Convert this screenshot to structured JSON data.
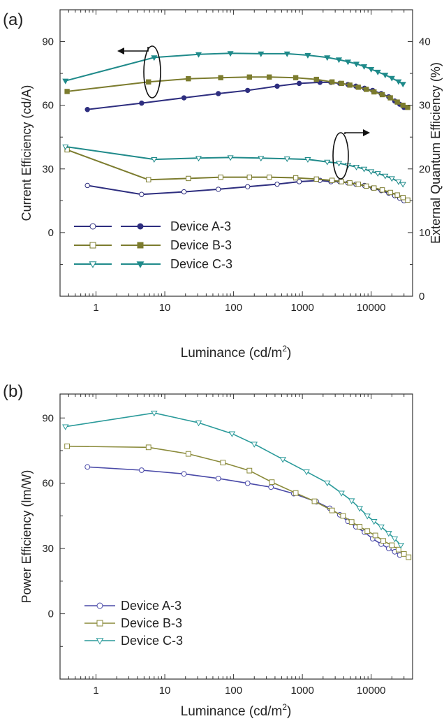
{
  "chart_data": [
    {
      "panel_label": "(a)",
      "type": "line",
      "x_scale": "log",
      "xlabel": "Luminance (cd/m",
      "xlabel_sup": "2",
      "xlabel_close": ")",
      "xlim": [
        0.3,
        40000
      ],
      "xticks": [
        1,
        10,
        100,
        1000,
        10000
      ],
      "xtick_labels": [
        "1",
        "10",
        "100",
        "1000",
        "10000"
      ],
      "ylabel_left": "Current Efficiency (cd/A)",
      "ylim_left": [
        -30,
        105
      ],
      "yticks_left": [
        0,
        30,
        60,
        90
      ],
      "ylabel_right": "External Quantum Efficiency (%)",
      "ylim_right": [
        0,
        45
      ],
      "yticks_right": [
        0,
        10,
        20,
        30,
        40
      ],
      "legend_position": "lower-left",
      "legend": [
        "Device A-3",
        "Device B-3",
        "Device C-3"
      ],
      "series": [
        {
          "name": "Device A-3",
          "color": "#2e2e7f",
          "metric": "current-efficiency",
          "axis": "left",
          "marker": "circle",
          "filled": true,
          "x": [
            0.75,
            4.6,
            19,
            60,
            160,
            430,
            900,
            1800,
            2600,
            3500,
            4600,
            6000,
            8000,
            10500,
            14000,
            18000,
            22000,
            26000,
            30000
          ],
          "y": [
            58,
            61,
            63.5,
            65.5,
            67,
            69,
            70.3,
            70.8,
            70.8,
            70.3,
            69.8,
            69,
            68,
            67,
            65.5,
            64,
            62,
            60.5,
            59
          ]
        },
        {
          "name": "Device A-3",
          "color": "#2e2e7f",
          "metric": "external-quantum-efficiency",
          "axis": "right",
          "marker": "circle",
          "filled": false,
          "x": [
            0.75,
            4.6,
            19,
            60,
            160,
            430,
            900,
            1800,
            2600,
            3500,
            4600,
            6000,
            8000,
            10500,
            14000,
            18000,
            22000,
            26000,
            30000
          ],
          "y": [
            17.4,
            16.0,
            16.4,
            16.8,
            17.2,
            17.6,
            18.0,
            18.2,
            18.0,
            18.0,
            17.8,
            17.6,
            17.4,
            17.0,
            16.6,
            16.2,
            15.8,
            15.4,
            15.0
          ]
        },
        {
          "name": "Device B-3",
          "color": "#7c7c2e",
          "metric": "current-efficiency",
          "axis": "left",
          "marker": "square",
          "filled": true,
          "x": [
            0.38,
            5.8,
            22,
            65,
            170,
            330,
            800,
            1600,
            2700,
            3700,
            4900,
            6500,
            8500,
            11000,
            14500,
            19000,
            24000,
            29000,
            34000
          ],
          "y": [
            66.5,
            71,
            72.5,
            73,
            73.3,
            73.3,
            73,
            72.2,
            71,
            70.3,
            69.5,
            68.5,
            67.5,
            66.3,
            65,
            63.5,
            61.5,
            60,
            59
          ]
        },
        {
          "name": "Device B-3",
          "color": "#7c7c2e",
          "metric": "external-quantum-efficiency",
          "axis": "right",
          "marker": "square",
          "filled": false,
          "x": [
            0.38,
            5.8,
            22,
            65,
            170,
            330,
            800,
            1600,
            2700,
            3700,
            4900,
            6500,
            8500,
            11000,
            14500,
            19000,
            24000,
            29000,
            34000
          ],
          "y": [
            23.0,
            18.3,
            18.5,
            18.7,
            18.7,
            18.7,
            18.6,
            18.4,
            18.2,
            18.0,
            17.8,
            17.6,
            17.3,
            17.0,
            16.7,
            16.3,
            15.9,
            15.5,
            15.1
          ]
        },
        {
          "name": "Device C-3",
          "color": "#1f8a8a",
          "metric": "current-efficiency",
          "axis": "left",
          "marker": "triangle-down",
          "filled": true,
          "x": [
            0.36,
            7,
            31,
            90,
            250,
            600,
            1200,
            2300,
            3400,
            4600,
            6100,
            7900,
            10000,
            12500,
            16000,
            20000,
            25000,
            29000
          ],
          "y": [
            71.5,
            82.5,
            84,
            84.5,
            84.3,
            84.3,
            83.6,
            82.5,
            81.5,
            80.5,
            79.5,
            78.3,
            77,
            75.7,
            74.3,
            72.8,
            71.2,
            70
          ]
        },
        {
          "name": "Device C-3",
          "color": "#1f8a8a",
          "metric": "external-quantum-efficiency",
          "axis": "right",
          "marker": "triangle-down",
          "filled": false,
          "x": [
            0.36,
            7,
            31,
            90,
            250,
            600,
            1200,
            2300,
            3400,
            4600,
            6100,
            7900,
            10000,
            12500,
            16000,
            20000,
            25000,
            29000
          ],
          "y": [
            23.5,
            21.5,
            21.7,
            21.8,
            21.7,
            21.6,
            21.5,
            21.1,
            20.9,
            20.6,
            20.3,
            20.0,
            19.6,
            19.3,
            18.9,
            18.5,
            18.0,
            17.6
          ]
        }
      ]
    },
    {
      "panel_label": "(b)",
      "type": "line",
      "x_scale": "log",
      "xlabel": "Luminance (cd/m",
      "xlabel_sup": "2",
      "xlabel_close": ")",
      "xlim": [
        0.3,
        40000
      ],
      "xticks": [
        1,
        10,
        100,
        1000,
        10000
      ],
      "xtick_labels": [
        "1",
        "10",
        "100",
        "1000",
        "10000"
      ],
      "ylabel": "Power Efficiency (lm/W)",
      "ylim": [
        -30,
        101
      ],
      "yticks": [
        0,
        30,
        60,
        90
      ],
      "legend_position": "lower-left",
      "series": [
        {
          "name": "Device A-3",
          "color": "#4a4aa8",
          "marker": "circle",
          "x": [
            0.75,
            4.6,
            19,
            60,
            160,
            350,
            750,
            1600,
            2500,
            3500,
            4600,
            6000,
            8000,
            10500,
            14000,
            18000,
            22000,
            26000
          ],
          "y": [
            67.5,
            66,
            64.3,
            62.2,
            60,
            58.2,
            55.2,
            51.5,
            48.5,
            45.5,
            42.5,
            40,
            37.5,
            34.5,
            32,
            30,
            28.5,
            27
          ]
        },
        {
          "name": "Device B-3",
          "color": "#8a8a3a",
          "marker": "square",
          "x": [
            0.38,
            5.8,
            22,
            70,
            170,
            360,
            800,
            1500,
            2700,
            3900,
            5200,
            6800,
            8800,
            11500,
            15000,
            20000,
            25000,
            30000,
            35000
          ],
          "y": [
            77,
            76.5,
            73.5,
            69.5,
            65.8,
            60.5,
            55.5,
            51.7,
            47.5,
            45,
            42.2,
            40,
            38,
            36,
            33.5,
            31.5,
            29.5,
            27.5,
            26
          ]
        },
        {
          "name": "Device C-3",
          "color": "#2a9a9a",
          "marker": "triangle-down",
          "x": [
            0.36,
            7,
            31,
            95,
            200,
            520,
            1150,
            2300,
            3700,
            5200,
            6800,
            8800,
            11000,
            14000,
            18000,
            22000,
            27000
          ],
          "y": [
            86,
            92.3,
            87.8,
            82.8,
            78,
            71,
            65.3,
            60.2,
            55.5,
            52,
            48.5,
            45,
            42.5,
            40,
            37,
            34.5,
            31.5
          ]
        }
      ]
    }
  ]
}
